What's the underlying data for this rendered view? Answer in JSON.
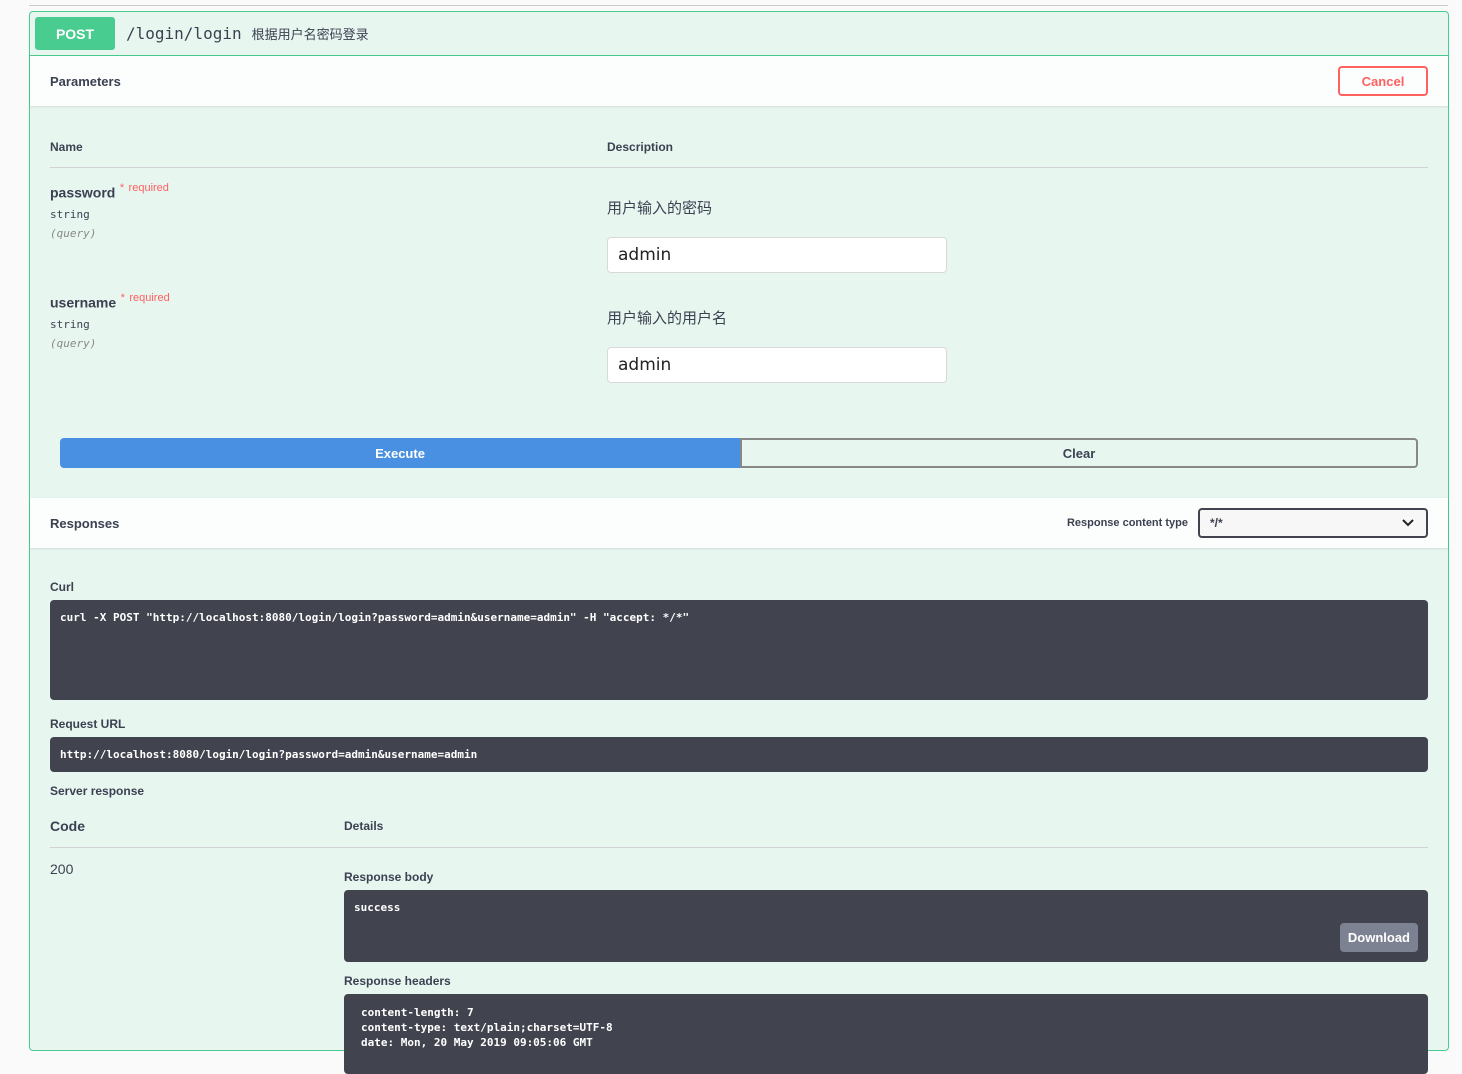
{
  "operation": {
    "method": "POST",
    "path": "/login/login",
    "summary": "根据用户名密码登录"
  },
  "parameters": {
    "title": "Parameters",
    "cancel": "Cancel",
    "col_name": "Name",
    "col_desc": "Description",
    "items": [
      {
        "name": "password",
        "required_mark": "*",
        "required": "required",
        "type": "string",
        "in": "(query)",
        "description": "用户输入的密码",
        "value": "admin"
      },
      {
        "name": "username",
        "required_mark": "*",
        "required": "required",
        "type": "string",
        "in": "(query)",
        "description": "用户输入的用户名",
        "value": "admin"
      }
    ]
  },
  "actions": {
    "execute": "Execute",
    "clear": "Clear"
  },
  "responses": {
    "title": "Responses",
    "content_type_label": "Response content type",
    "content_type": "*/*",
    "curl_label": "Curl",
    "curl": "curl -X POST \"http://localhost:8080/login/login?password=admin&username=admin\" -H \"accept: */*\"",
    "request_url_label": "Request URL",
    "request_url": "http://localhost:8080/login/login?password=admin&username=admin",
    "server_response_label": "Server response",
    "col_code": "Code",
    "col_details": "Details",
    "code": "200",
    "body_label": "Response body",
    "body": "success",
    "download": "Download",
    "headers_label": "Response headers",
    "headers": "content-length: 7\ncontent-type: text/plain;charset=UTF-8\ndate: Mon, 20 May 2019 09:05:06 GMT"
  }
}
